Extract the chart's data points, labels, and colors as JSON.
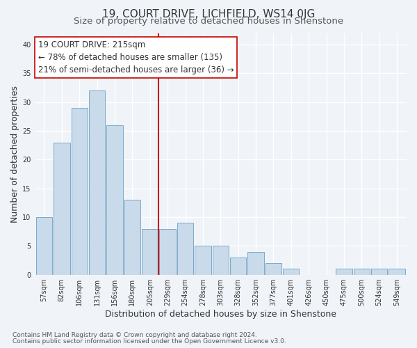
{
  "title": "19, COURT DRIVE, LICHFIELD, WS14 0JG",
  "subtitle": "Size of property relative to detached houses in Shenstone",
  "xlabel": "Distribution of detached houses by size in Shenstone",
  "ylabel": "Number of detached properties",
  "bar_labels": [
    "57sqm",
    "82sqm",
    "106sqm",
    "131sqm",
    "156sqm",
    "180sqm",
    "205sqm",
    "229sqm",
    "254sqm",
    "278sqm",
    "303sqm",
    "328sqm",
    "352sqm",
    "377sqm",
    "401sqm",
    "426sqm",
    "450sqm",
    "475sqm",
    "500sqm",
    "524sqm",
    "549sqm"
  ],
  "bar_values": [
    10,
    23,
    29,
    32,
    26,
    13,
    8,
    8,
    9,
    5,
    5,
    3,
    4,
    2,
    1,
    0,
    0,
    1,
    1,
    1,
    1
  ],
  "bar_color": "#c9daea",
  "bar_edgecolor": "#7aaac8",
  "ylim": [
    0,
    42
  ],
  "yticks": [
    0,
    5,
    10,
    15,
    20,
    25,
    30,
    35,
    40
  ],
  "vline_x": 6.5,
  "vline_color": "#cc0000",
  "annotation_title": "19 COURT DRIVE: 215sqm",
  "annotation_line1": "← 78% of detached houses are smaller (135)",
  "annotation_line2": "21% of semi-detached houses are larger (36) →",
  "annotation_box_facecolor": "#ffffff",
  "annotation_box_edgecolor": "#cc0000",
  "footnote1": "Contains HM Land Registry data © Crown copyright and database right 2024.",
  "footnote2": "Contains public sector information licensed under the Open Government Licence v3.0.",
  "bg_color": "#f0f4f8",
  "grid_color": "#ffffff",
  "title_fontsize": 11,
  "subtitle_fontsize": 9.5,
  "axis_label_fontsize": 9,
  "tick_fontsize": 7,
  "annotation_title_fontsize": 9,
  "annotation_body_fontsize": 8.5,
  "footnote_fontsize": 6.5
}
